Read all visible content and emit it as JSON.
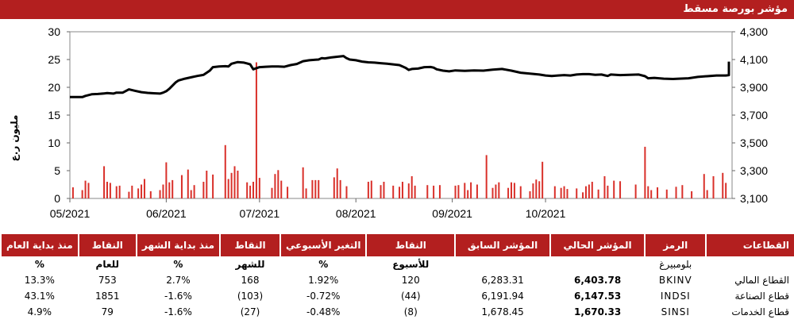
{
  "header": {
    "title": "مؤشر بورصة مسقط"
  },
  "chart_data": {
    "type": "bar+line",
    "ylabel_left": "مليون ر.ع",
    "ylim_left": [
      0,
      30
    ],
    "yticks_left": [
      "0",
      "5",
      "10",
      "15",
      "20",
      "25",
      "30"
    ],
    "ylim_right": [
      3100,
      4300
    ],
    "yticks_right": [
      "3,100",
      "3,300",
      "3,500",
      "3,700",
      "3,900",
      "4,100",
      "4,300"
    ],
    "x_start": "2021-05-01",
    "x_end": "2021-11-30",
    "x_ticks": [
      {
        "date": "2021-05-01",
        "label": "05/2021"
      },
      {
        "date": "2021-06-01",
        "label": "06/2021"
      },
      {
        "date": "2021-07-01",
        "label": "07/2021"
      },
      {
        "date": "2021-08-01",
        "label": "08/2021"
      },
      {
        "date": "2021-09-01",
        "label": "09/2021"
      },
      {
        "date": "2021-10-01",
        "label": "10/2021"
      }
    ],
    "series": [
      {
        "type": "bar",
        "axis": "left",
        "color": "#d9302a",
        "points": [
          [
            "2021-05-02",
            2.0
          ],
          [
            "2021-05-05",
            1.5
          ],
          [
            "2021-05-06",
            3.2
          ],
          [
            "2021-05-07",
            2.8
          ],
          [
            "2021-05-12",
            5.8
          ],
          [
            "2021-05-13",
            3.0
          ],
          [
            "2021-05-14",
            2.8
          ],
          [
            "2021-05-16",
            2.2
          ],
          [
            "2021-05-17",
            2.3
          ],
          [
            "2021-05-20",
            1.2
          ],
          [
            "2021-05-21",
            2.3
          ],
          [
            "2021-05-23",
            1.8
          ],
          [
            "2021-05-24",
            2.5
          ],
          [
            "2021-05-25",
            3.5
          ],
          [
            "2021-05-27",
            1.3
          ],
          [
            "2021-05-30",
            1.5
          ],
          [
            "2021-05-31",
            2.5
          ],
          [
            "2021-06-01",
            6.5
          ],
          [
            "2021-06-02",
            2.9
          ],
          [
            "2021-06-03",
            3.3
          ],
          [
            "2021-06-06",
            4.2
          ],
          [
            "2021-06-08",
            5.2
          ],
          [
            "2021-06-09",
            1.5
          ],
          [
            "2021-06-10",
            2.4
          ],
          [
            "2021-06-13",
            3.0
          ],
          [
            "2021-06-14",
            5.0
          ],
          [
            "2021-06-16",
            4.3
          ],
          [
            "2021-06-20",
            9.6
          ],
          [
            "2021-06-21",
            3.5
          ],
          [
            "2021-06-22",
            4.6
          ],
          [
            "2021-06-23",
            5.8
          ],
          [
            "2021-06-24",
            5.0
          ],
          [
            "2021-06-27",
            2.9
          ],
          [
            "2021-06-28",
            2.3
          ],
          [
            "2021-06-29",
            3.0
          ],
          [
            "2021-06-30",
            24.5
          ],
          [
            "2021-07-01",
            3.7
          ],
          [
            "2021-07-05",
            1.9
          ],
          [
            "2021-07-06",
            4.4
          ],
          [
            "2021-07-07",
            5.1
          ],
          [
            "2021-07-08",
            3.2
          ],
          [
            "2021-07-10",
            2.1
          ],
          [
            "2021-07-15",
            5.6
          ],
          [
            "2021-07-16",
            1.8
          ],
          [
            "2021-07-18",
            3.3
          ],
          [
            "2021-07-19",
            3.3
          ],
          [
            "2021-07-20",
            3.3
          ],
          [
            "2021-07-25",
            3.8
          ],
          [
            "2021-07-26",
            5.4
          ],
          [
            "2021-07-27",
            3.3
          ],
          [
            "2021-07-29",
            2.2
          ],
          [
            "2021-08-05",
            3.0
          ],
          [
            "2021-08-06",
            3.2
          ],
          [
            "2021-08-09",
            2.4
          ],
          [
            "2021-08-10",
            3.0
          ],
          [
            "2021-08-13",
            2.3
          ],
          [
            "2021-08-15",
            2.1
          ],
          [
            "2021-08-16",
            3.0
          ],
          [
            "2021-08-18",
            2.7
          ],
          [
            "2021-08-19",
            4.0
          ],
          [
            "2021-08-20",
            2.3
          ],
          [
            "2021-08-24",
            2.4
          ],
          [
            "2021-08-26",
            2.3
          ],
          [
            "2021-08-28",
            2.4
          ],
          [
            "2021-09-02",
            2.3
          ],
          [
            "2021-09-03",
            2.4
          ],
          [
            "2021-09-05",
            2.8
          ],
          [
            "2021-09-06",
            1.5
          ],
          [
            "2021-09-07",
            2.9
          ],
          [
            "2021-09-09",
            2.5
          ],
          [
            "2021-09-12",
            7.8
          ],
          [
            "2021-09-14",
            1.9
          ],
          [
            "2021-09-15",
            2.5
          ],
          [
            "2021-09-16",
            2.9
          ],
          [
            "2021-09-19",
            1.9
          ],
          [
            "2021-09-20",
            2.9
          ],
          [
            "2021-09-21",
            2.8
          ],
          [
            "2021-09-23",
            2.2
          ],
          [
            "2021-09-26",
            1.3
          ],
          [
            "2021-09-27",
            2.7
          ],
          [
            "2021-09-28",
            3.4
          ],
          [
            "2021-09-29",
            3.1
          ],
          [
            "2021-09-30",
            6.6
          ],
          [
            "2021-10-04",
            2.2
          ],
          [
            "2021-10-06",
            1.9
          ],
          [
            "2021-10-07",
            2.2
          ],
          [
            "2021-10-08",
            1.7
          ],
          [
            "2021-10-11",
            1.8
          ],
          [
            "2021-10-13",
            1.1
          ],
          [
            "2021-10-14",
            2.2
          ],
          [
            "2021-10-15",
            2.5
          ],
          [
            "2021-10-16",
            3.0
          ],
          [
            "2021-10-18",
            1.6
          ],
          [
            "2021-10-20",
            4.0
          ],
          [
            "2021-10-21",
            2.3
          ],
          [
            "2021-10-23",
            3.2
          ],
          [
            "2021-10-25",
            3.1
          ],
          [
            "2021-10-30",
            2.5
          ],
          [
            "2021-11-02",
            9.3
          ],
          [
            "2021-11-03",
            2.2
          ],
          [
            "2021-11-04",
            1.5
          ],
          [
            "2021-11-06",
            2.0
          ],
          [
            "2021-11-09",
            1.6
          ],
          [
            "2021-11-12",
            2.1
          ],
          [
            "2021-11-14",
            2.4
          ],
          [
            "2021-11-17",
            1.3
          ],
          [
            "2021-11-21",
            4.4
          ],
          [
            "2021-11-22",
            1.5
          ],
          [
            "2021-11-24",
            4.0
          ],
          [
            "2021-11-27",
            4.6
          ],
          [
            "2021-11-28",
            2.8
          ]
        ]
      },
      {
        "type": "line",
        "axis": "right",
        "color": "#000000",
        "points": [
          [
            "2021-05-01",
            3830
          ],
          [
            "2021-05-02",
            3830
          ],
          [
            "2021-05-05",
            3830
          ],
          [
            "2021-05-06",
            3838
          ],
          [
            "2021-05-08",
            3850
          ],
          [
            "2021-05-10",
            3852
          ],
          [
            "2021-05-12",
            3856
          ],
          [
            "2021-05-13",
            3858
          ],
          [
            "2021-05-15",
            3855
          ],
          [
            "2021-05-16",
            3862
          ],
          [
            "2021-05-18",
            3862
          ],
          [
            "2021-05-20",
            3885
          ],
          [
            "2021-05-22",
            3875
          ],
          [
            "2021-05-24",
            3865
          ],
          [
            "2021-05-26",
            3860
          ],
          [
            "2021-05-28",
            3857
          ],
          [
            "2021-05-30",
            3855
          ],
          [
            "2021-05-31",
            3862
          ],
          [
            "2021-06-01",
            3872
          ],
          [
            "2021-06-02",
            3890
          ],
          [
            "2021-06-04",
            3935
          ],
          [
            "2021-06-05",
            3950
          ],
          [
            "2021-06-07",
            3962
          ],
          [
            "2021-06-09",
            3972
          ],
          [
            "2021-06-11",
            3982
          ],
          [
            "2021-06-13",
            3990
          ],
          [
            "2021-06-15",
            4020
          ],
          [
            "2021-06-16",
            4045
          ],
          [
            "2021-06-18",
            4050
          ],
          [
            "2021-06-20",
            4052
          ],
          [
            "2021-06-21",
            4050
          ],
          [
            "2021-06-22",
            4070
          ],
          [
            "2021-06-24",
            4082
          ],
          [
            "2021-06-26",
            4078
          ],
          [
            "2021-06-27",
            4072
          ],
          [
            "2021-06-28",
            4065
          ],
          [
            "2021-06-29",
            4030
          ],
          [
            "2021-06-30",
            4038
          ],
          [
            "2021-07-01",
            4045
          ],
          [
            "2021-07-03",
            4048
          ],
          [
            "2021-07-05",
            4050
          ],
          [
            "2021-07-07",
            4050
          ],
          [
            "2021-07-09",
            4048
          ],
          [
            "2021-07-11",
            4060
          ],
          [
            "2021-07-13",
            4068
          ],
          [
            "2021-07-15",
            4088
          ],
          [
            "2021-07-17",
            4095
          ],
          [
            "2021-07-19",
            4098
          ],
          [
            "2021-07-20",
            4100
          ],
          [
            "2021-07-21",
            4110
          ],
          [
            "2021-07-22",
            4108
          ],
          [
            "2021-07-24",
            4115
          ],
          [
            "2021-07-26",
            4120
          ],
          [
            "2021-07-28",
            4125
          ],
          [
            "2021-07-29",
            4110
          ],
          [
            "2021-07-30",
            4100
          ],
          [
            "2021-08-01",
            4095
          ],
          [
            "2021-08-03",
            4085
          ],
          [
            "2021-08-05",
            4080
          ],
          [
            "2021-08-07",
            4078
          ],
          [
            "2021-08-09",
            4074
          ],
          [
            "2021-08-11",
            4070
          ],
          [
            "2021-08-13",
            4065
          ],
          [
            "2021-08-15",
            4060
          ],
          [
            "2021-08-17",
            4040
          ],
          [
            "2021-08-18",
            4025
          ],
          [
            "2021-08-19",
            4032
          ],
          [
            "2021-08-21",
            4035
          ],
          [
            "2021-08-23",
            4045
          ],
          [
            "2021-08-25",
            4046
          ],
          [
            "2021-08-26",
            4042
          ],
          [
            "2021-08-27",
            4030
          ],
          [
            "2021-08-29",
            4020
          ],
          [
            "2021-08-31",
            4015
          ],
          [
            "2021-09-02",
            4022
          ],
          [
            "2021-09-05",
            4018
          ],
          [
            "2021-09-08",
            4022
          ],
          [
            "2021-09-11",
            4020
          ],
          [
            "2021-09-14",
            4027
          ],
          [
            "2021-09-17",
            4032
          ],
          [
            "2021-09-20",
            4020
          ],
          [
            "2021-09-23",
            4005
          ],
          [
            "2021-09-26",
            3998
          ],
          [
            "2021-09-29",
            3992
          ],
          [
            "2021-10-01",
            3985
          ],
          [
            "2021-10-03",
            3982
          ],
          [
            "2021-10-05",
            3985
          ],
          [
            "2021-10-07",
            3988
          ],
          [
            "2021-10-09",
            3985
          ],
          [
            "2021-10-11",
            3992
          ],
          [
            "2021-10-13",
            3995
          ],
          [
            "2021-10-15",
            3995
          ],
          [
            "2021-10-17",
            3990
          ],
          [
            "2021-10-19",
            3992
          ],
          [
            "2021-10-21",
            3982
          ],
          [
            "2021-10-22",
            3992
          ],
          [
            "2021-10-25",
            3988
          ],
          [
            "2021-10-28",
            3990
          ],
          [
            "2021-10-31",
            3992
          ],
          [
            "2021-11-02",
            3980
          ],
          [
            "2021-11-03",
            3965
          ],
          [
            "2021-11-05",
            3968
          ],
          [
            "2021-11-08",
            3962
          ],
          [
            "2021-11-11",
            3960
          ],
          [
            "2021-11-13",
            3962
          ],
          [
            "2021-11-16",
            3965
          ],
          [
            "2021-11-19",
            3975
          ],
          [
            "2021-11-22",
            3980
          ],
          [
            "2021-11-25",
            3985
          ],
          [
            "2021-11-28",
            3985
          ],
          [
            "2021-11-30",
            3988
          ],
          [
            "2021-12-02",
            3992
          ],
          [
            "2021-12-04",
            4000
          ],
          [
            "2021-12-06",
            4003
          ],
          [
            "2021-12-08",
            4010
          ],
          [
            "2021-12-10",
            4015
          ],
          [
            "2021-12-12",
            4020
          ],
          [
            "2021-12-14",
            4025
          ],
          [
            "2021-12-16",
            4030
          ],
          [
            "2021-12-18",
            4050
          ],
          [
            "2021-12-20",
            4063
          ],
          [
            "2021-12-22",
            4072
          ],
          [
            "2021-12-24",
            4085
          ]
        ]
      }
    ]
  },
  "table": {
    "headers": {
      "sector": "القطاعات",
      "symbol": "الرمز",
      "current": "المؤشر الحالي",
      "previous": "المؤشر السابق",
      "week_points": "النقاط",
      "week_change": "التغير الأسبوعي",
      "month_points": "النقاط",
      "month_change": "منذ بداية الشهر",
      "year_points": "النقاط",
      "year_change": "منذ بداية العام"
    },
    "subheaders": {
      "symbol": "بلومبيرغ",
      "week_points": "للأسبوع",
      "week_change": "%",
      "month_points": "للشهر",
      "month_change": "%",
      "year_points": "للعام",
      "year_change": "%"
    },
    "rows": [
      {
        "sector": "القطاع المالي",
        "symbol": "BKINV",
        "current": "6,403.78",
        "previous": "6,283.31",
        "week_points": "120",
        "week_change": "1.92%",
        "month_points": "168",
        "month_change": "2.7%",
        "year_points": "753",
        "year_change": "13.3%"
      },
      {
        "sector": "قطاع الصناعة",
        "symbol": "INDSI",
        "current": "6,147.53",
        "previous": "6,191.94",
        "week_points": "(44)",
        "week_change": "-0.72%",
        "month_points": "(103)",
        "month_change": "-1.6%",
        "year_points": "1851",
        "year_change": "43.1%"
      },
      {
        "sector": "قطاع الخدمات",
        "symbol": "SINSI",
        "current": "1,670.33",
        "previous": "1,678.45",
        "week_points": "(8)",
        "week_change": "-0.48%",
        "month_points": "(27)",
        "month_change": "-1.6%",
        "year_points": "79",
        "year_change": "4.9%"
      }
    ],
    "row_colors": {
      "0": {
        "week_points": "pos",
        "week_change": "pos",
        "month_points": "pos",
        "month_change": "pos",
        "year_points": "pos",
        "year_change": "pos"
      },
      "1": {
        "week_points": "neg",
        "week_change": "neg",
        "month_points": "neg",
        "month_change": "neg",
        "year_points": "pos",
        "year_change": "pos"
      },
      "2": {
        "week_points": "neg",
        "week_change": "neg",
        "month_points": "neg",
        "month_change": "neg",
        "year_points": "pos",
        "year_change": "pos"
      }
    }
  }
}
